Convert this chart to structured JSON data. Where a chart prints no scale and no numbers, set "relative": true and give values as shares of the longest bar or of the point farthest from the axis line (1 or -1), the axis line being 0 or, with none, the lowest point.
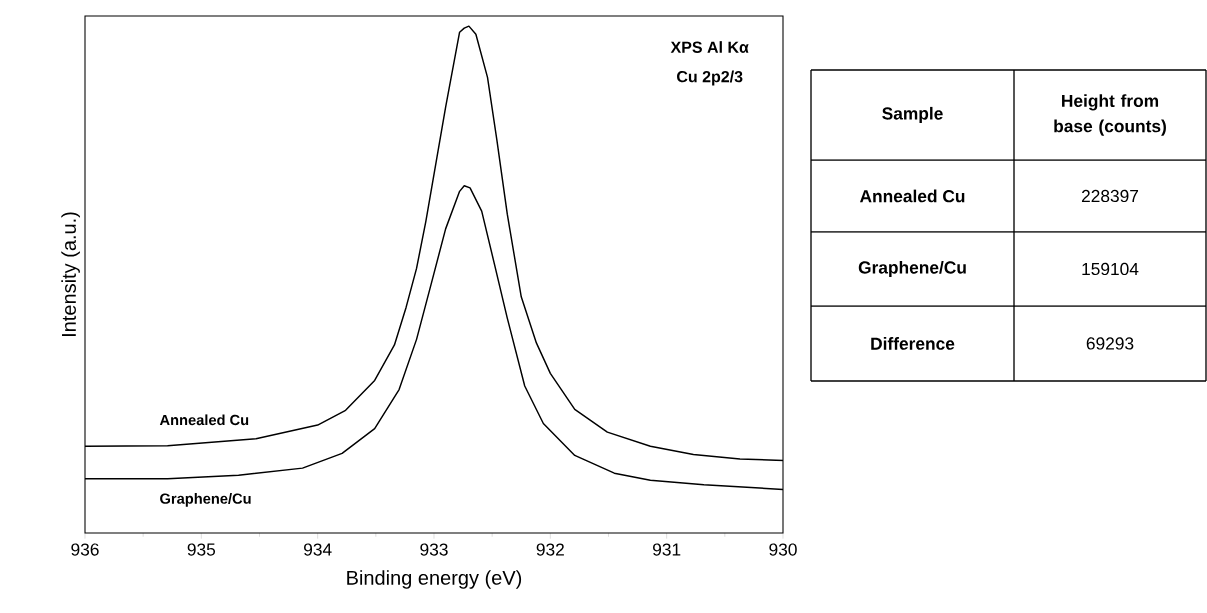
{
  "chart_data": [
    {
      "type": "line",
      "xlabel": "Binding energy (eV)",
      "ylabel": "Intensity (a.u.)",
      "relative": true,
      "xlim": [
        936,
        930
      ],
      "xticks": [
        936,
        935,
        934,
        933,
        932,
        931,
        930
      ],
      "annotations": [
        "XPS Al Kα",
        "Cu 2p2/3"
      ],
      "series": [
        {
          "name": "Annealed Cu",
          "color": "#000000",
          "x": [
            936,
            935.29,
            934.53,
            934.0,
            933.76,
            933.51,
            933.34,
            933.24,
            933.15,
            933.07,
            932.98,
            932.9,
            932.78,
            932.74,
            932.7,
            932.64,
            932.54,
            932.46,
            932.37,
            932.25,
            932.12,
            932.0,
            931.79,
            931.51,
            931.14,
            930.77,
            930.37,
            930.0
          ],
          "values": [
            0.171,
            0.172,
            0.186,
            0.213,
            0.242,
            0.301,
            0.371,
            0.445,
            0.522,
            0.615,
            0.734,
            0.84,
            0.988,
            0.996,
            1.0,
            0.984,
            0.899,
            0.776,
            0.629,
            0.466,
            0.375,
            0.315,
            0.244,
            0.199,
            0.171,
            0.155,
            0.146,
            0.143
          ]
        },
        {
          "name": "Graphene/Cu",
          "color": "#000000",
          "x": [
            936,
            935.29,
            934.68,
            934.13,
            933.79,
            933.51,
            933.3,
            933.15,
            933.02,
            932.9,
            932.78,
            932.74,
            932.69,
            932.59,
            932.48,
            932.37,
            932.22,
            932.06,
            931.79,
            931.45,
            931.14,
            930.68,
            930.0
          ],
          "values": [
            0.107,
            0.107,
            0.114,
            0.128,
            0.157,
            0.206,
            0.283,
            0.382,
            0.495,
            0.6,
            0.674,
            0.685,
            0.681,
            0.635,
            0.53,
            0.424,
            0.29,
            0.216,
            0.153,
            0.118,
            0.104,
            0.095,
            0.086
          ]
        }
      ]
    },
    {
      "type": "other",
      "xlabel": "Sample",
      "ylabel": "Height from base (counts)",
      "categories": [
        "Annealed Cu",
        "Graphene/Cu",
        "Difference"
      ],
      "values": [
        228397,
        159104,
        69293
      ],
      "data_labels": true
    }
  ]
}
